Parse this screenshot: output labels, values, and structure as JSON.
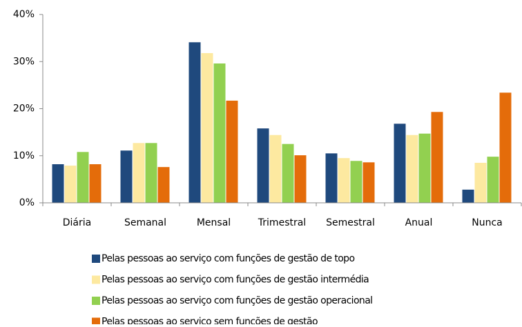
{
  "chart_data": {
    "type": "bar",
    "categories": [
      "Diária",
      "Semanal",
      "Mensal",
      "Trimestral",
      "Semestral",
      "Anual",
      "Nunca"
    ],
    "series": [
      {
        "name": "Pelas pessoas ao serviço com funções de gestão de topo",
        "color": "#1f497d",
        "values": [
          8.2,
          11.1,
          34.1,
          15.8,
          10.5,
          16.8,
          2.8
        ]
      },
      {
        "name": "Pelas pessoas ao serviço com funções de gestão intermédia",
        "color": "#fde9a0",
        "values": [
          7.9,
          12.7,
          31.8,
          14.4,
          9.5,
          14.4,
          8.5
        ]
      },
      {
        "name": "Pelas pessoas ao serviço com funções de gestão operacional",
        "color": "#92d050",
        "values": [
          10.8,
          12.7,
          29.6,
          12.5,
          8.9,
          14.7,
          9.8
        ]
      },
      {
        "name": "Pelas pessoas ao serviço sem funções de gestão",
        "color": "#e46c0a",
        "values": [
          8.2,
          7.6,
          21.7,
          10.1,
          8.6,
          19.3,
          23.4
        ]
      }
    ],
    "ylim": [
      0,
      40
    ],
    "yticks": [
      {
        "value": 0,
        "label": "0%"
      },
      {
        "value": 10,
        "label": "10%"
      },
      {
        "value": 20,
        "label": "20%"
      },
      {
        "value": 30,
        "label": "30%"
      },
      {
        "value": 40,
        "label": "40%"
      }
    ],
    "grid": false,
    "legend": "bottom"
  }
}
